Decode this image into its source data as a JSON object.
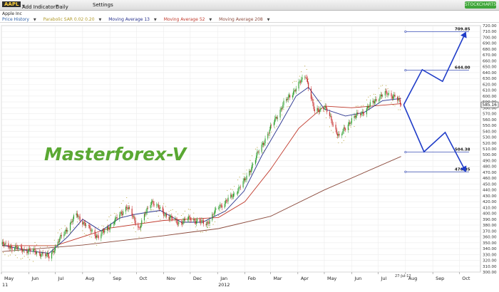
{
  "toolbar": {
    "symbol": "AAPL",
    "add_indicator": "Add Indicator",
    "period": "Daily",
    "settings": "Settings",
    "logo": "STOCKCHARTS"
  },
  "company": "Apple Inc",
  "legend": [
    {
      "label": "Price History",
      "color": "#2b5fa8"
    },
    {
      "label": "Parabolic SAR 0.02 0.20",
      "color": "#b09a2a"
    },
    {
      "label": "Moving Average 13",
      "color": "#25308c"
    },
    {
      "label": "Moving Average 52",
      "color": "#c0392b"
    },
    {
      "label": "Moving Average 208",
      "color": "#8b4a3c"
    }
  ],
  "chart_data": {
    "type": "candlestick",
    "watermark": "Masterforex-V",
    "y_axis": {
      "min": 300,
      "max": 720,
      "step": 10,
      "ticks": [
        "720.00",
        "710.00",
        "700.00",
        "690.00",
        "680.00",
        "670.00",
        "660.00",
        "650.00",
        "640.00",
        "630.00",
        "620.00",
        "610.00",
        "600.00",
        "590.00",
        "580.00",
        "570.00",
        "560.00",
        "550.00",
        "540.00",
        "530.00",
        "520.00",
        "510.00",
        "500.00",
        "490.00",
        "480.00",
        "470.00",
        "460.00",
        "450.00",
        "440.00",
        "430.00",
        "420.00",
        "410.00",
        "400.00",
        "390.00",
        "380.00",
        "370.00",
        "360.00",
        "350.00",
        "340.00",
        "330.00",
        "320.00",
        "310.00",
        "300.00"
      ]
    },
    "x_axis": {
      "labels": [
        "May",
        "Jun",
        "Jul",
        "Aug",
        "Sep",
        "Oct",
        "Nov",
        "Dec",
        "Jan",
        "Feb",
        "Mar",
        "Apr",
        "May",
        "Jun",
        "Jul",
        "Aug",
        "Sep",
        "Oct"
      ],
      "year_labels": [
        {
          "label": "11",
          "month": "May"
        },
        {
          "label": "2012",
          "month": "Jan"
        }
      ],
      "last_date": "27-Jul-12"
    },
    "last_price": "585.16",
    "price_path": [
      [
        "2011-05-02",
        347
      ],
      [
        "2011-05-20",
        340
      ],
      [
        "2011-06-10",
        334
      ],
      [
        "2011-06-24",
        326
      ],
      [
        "2011-07-08",
        360
      ],
      [
        "2011-07-25",
        398
      ],
      [
        "2011-08-08",
        374
      ],
      [
        "2011-08-19",
        360
      ],
      [
        "2011-09-06",
        386
      ],
      [
        "2011-09-20",
        412
      ],
      [
        "2011-10-04",
        375
      ],
      [
        "2011-10-18",
        422
      ],
      [
        "2011-11-01",
        400
      ],
      [
        "2011-11-17",
        384
      ],
      [
        "2011-12-01",
        391
      ],
      [
        "2011-12-19",
        382
      ],
      [
        "2012-01-03",
        412
      ],
      [
        "2012-01-17",
        428
      ],
      [
        "2012-02-01",
        456
      ],
      [
        "2012-02-15",
        500
      ],
      [
        "2012-03-01",
        545
      ],
      [
        "2012-03-15",
        585
      ],
      [
        "2012-03-26",
        606
      ],
      [
        "2012-04-10",
        636
      ],
      [
        "2012-04-20",
        572
      ],
      [
        "2012-05-01",
        583
      ],
      [
        "2012-05-18",
        530
      ],
      [
        "2012-06-01",
        561
      ],
      [
        "2012-06-15",
        574
      ],
      [
        "2012-07-02",
        599
      ],
      [
        "2012-07-10",
        604
      ],
      [
        "2012-07-20",
        600
      ],
      [
        "2012-07-27",
        585
      ]
    ],
    "ma13": [
      [
        "2011-05-02",
        346
      ],
      [
        "2011-06-01",
        336
      ],
      [
        "2011-06-24",
        332
      ],
      [
        "2011-07-15",
        360
      ],
      [
        "2011-08-01",
        390
      ],
      [
        "2011-08-22",
        370
      ],
      [
        "2011-09-12",
        392
      ],
      [
        "2011-09-28",
        398
      ],
      [
        "2011-10-14",
        402
      ],
      [
        "2011-10-28",
        405
      ],
      [
        "2011-11-21",
        385
      ],
      [
        "2011-12-15",
        385
      ],
      [
        "2012-01-10",
        404
      ],
      [
        "2012-01-31",
        438
      ],
      [
        "2012-02-20",
        498
      ],
      [
        "2012-03-12",
        552
      ],
      [
        "2012-03-30",
        600
      ],
      [
        "2012-04-13",
        615
      ],
      [
        "2012-05-01",
        578
      ],
      [
        "2012-05-25",
        566
      ],
      [
        "2012-06-15",
        572
      ],
      [
        "2012-07-06",
        592
      ],
      [
        "2012-07-27",
        596
      ]
    ],
    "ma52": [
      [
        "2011-05-02",
        345
      ],
      [
        "2011-07-01",
        345
      ],
      [
        "2011-09-01",
        375
      ],
      [
        "2011-11-01",
        388
      ],
      [
        "2012-01-02",
        393
      ],
      [
        "2012-02-01",
        420
      ],
      [
        "2012-03-01",
        475
      ],
      [
        "2012-04-02",
        545
      ],
      [
        "2012-05-01",
        583
      ],
      [
        "2012-06-01",
        580
      ],
      [
        "2012-07-27",
        587
      ]
    ],
    "ma208": [
      [
        "2011-05-02",
        335
      ],
      [
        "2011-08-01",
        346
      ],
      [
        "2011-11-01",
        362
      ],
      [
        "2012-01-02",
        374
      ],
      [
        "2012-03-01",
        395
      ],
      [
        "2012-05-01",
        440
      ],
      [
        "2012-07-27",
        497
      ]
    ],
    "forecast": {
      "levels": [
        {
          "label": "709.85",
          "value": 709.85
        },
        {
          "label": "644.00",
          "value": 644.0
        },
        {
          "label": "504.38",
          "value": 504.38
        },
        {
          "label": "470.85",
          "value": 470.85
        }
      ],
      "up_path": [
        [
          "2012-07-30",
          585
        ],
        [
          "2012-08-20",
          645
        ],
        [
          "2012-09-12",
          625
        ],
        [
          "2012-10-08",
          708
        ]
      ],
      "down_path": [
        [
          "2012-07-30",
          585
        ],
        [
          "2012-08-22",
          505
        ],
        [
          "2012-09-15",
          538
        ],
        [
          "2012-10-08",
          472
        ]
      ]
    },
    "grid": true,
    "legend_position": "top-left"
  }
}
